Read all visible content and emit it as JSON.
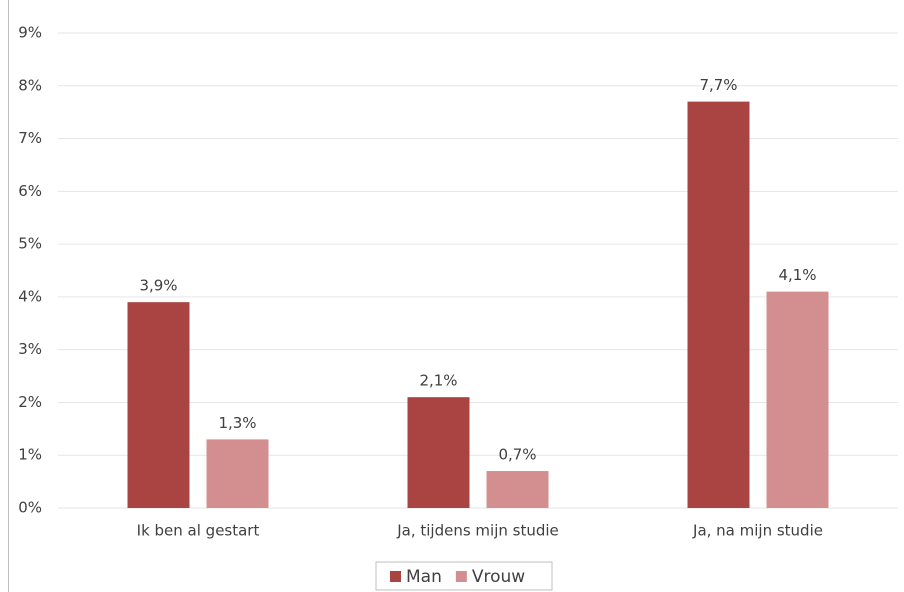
{
  "chart_data": {
    "type": "bar",
    "categories": [
      "Ik ben al gestart",
      "Ja, tijdens mijn studie",
      "Ja, na mijn studie"
    ],
    "series": [
      {
        "name": "Man",
        "color": "#a94442",
        "values": [
          3.9,
          2.1,
          7.7
        ],
        "value_labels": [
          "3,9%",
          "2,1%",
          "7,7%"
        ]
      },
      {
        "name": "Vrouw",
        "color": "#d38f8f",
        "values": [
          1.3,
          0.7,
          4.1
        ],
        "value_labels": [
          "1,3%",
          "0,7%",
          "4,1%"
        ]
      }
    ],
    "ylim": [
      0,
      9
    ],
    "yticks": [
      {
        "value": 0,
        "label": "0%"
      },
      {
        "value": 1,
        "label": "1%"
      },
      {
        "value": 2,
        "label": "2%"
      },
      {
        "value": 3,
        "label": "3%"
      },
      {
        "value": 4,
        "label": "4%"
      },
      {
        "value": 5,
        "label": "5%"
      },
      {
        "value": 6,
        "label": "6%"
      },
      {
        "value": 7,
        "label": "7%"
      },
      {
        "value": 8,
        "label": "8%"
      },
      {
        "value": 9,
        "label": "9%"
      }
    ],
    "grid": true,
    "legend": "bottom"
  }
}
